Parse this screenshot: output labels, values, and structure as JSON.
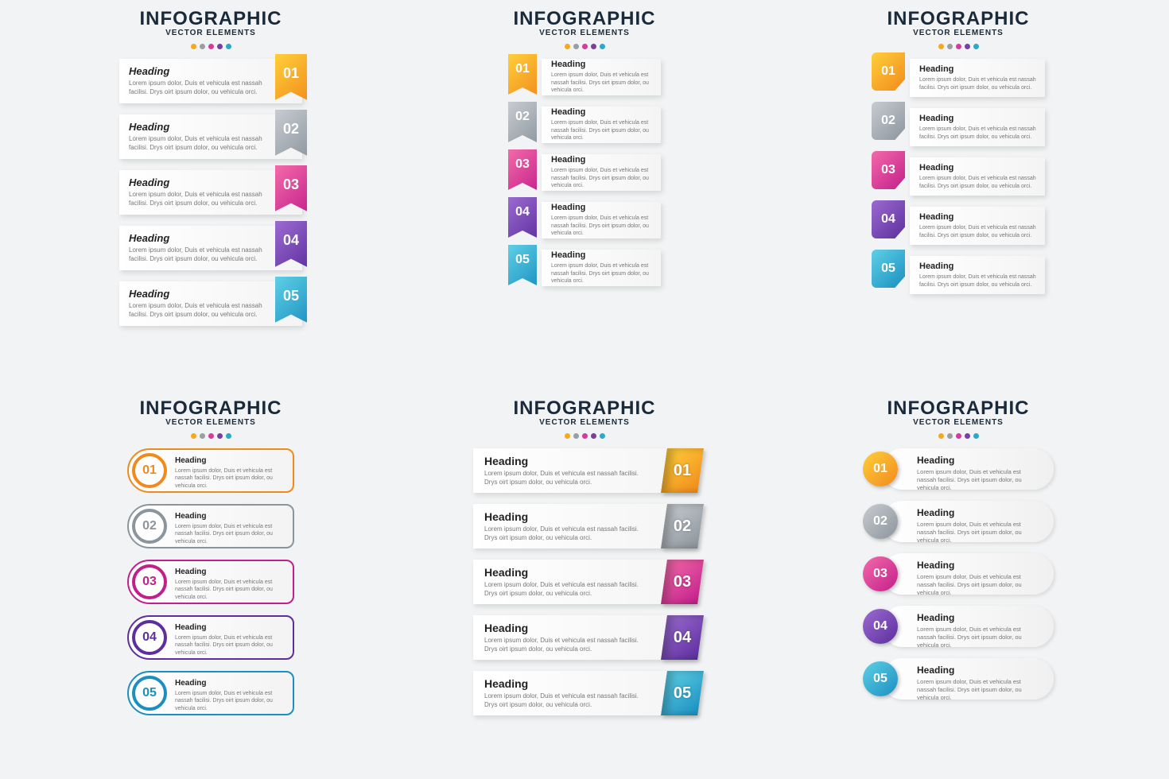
{
  "header": {
    "title": "INFOGRAPHIC",
    "subtitle": "VECTOR ELEMENTS"
  },
  "dot_colors": [
    "#f7a81b",
    "#9a9fa6",
    "#d63a9a",
    "#7b3fa0",
    "#2aa9c9"
  ],
  "item": {
    "heading": "Heading",
    "body": "Lorem ipsum dolor, Duis et vehicula est nassah facilisi. Drys oirt ipsum dolor, ou vehicula orci."
  },
  "numbers": [
    "01",
    "02",
    "03",
    "04",
    "05"
  ],
  "palette": {
    "01": {
      "grad_a": "#ffcf3a",
      "grad_b": "#f18a1c",
      "text_on": "#ffffff",
      "alt_text": "#f18a1c"
    },
    "02": {
      "grad_a": "#c7ccd1",
      "grad_b": "#8c949c",
      "text_on": "#ffffff",
      "alt_text": "#8c949c"
    },
    "03": {
      "grad_a": "#f36aa9",
      "grad_b": "#c31f8b",
      "text_on": "#ffffff",
      "alt_text": "#c31f8b"
    },
    "04": {
      "grad_a": "#9b6bd0",
      "grad_b": "#5d2f9e",
      "text_on": "#ffffff",
      "alt_text": "#5d2f9e"
    },
    "05": {
      "grad_a": "#5fd0e6",
      "grad_b": "#1a8fc0",
      "text_on": "#ffffff",
      "alt_text": "#1a8fc0"
    }
  },
  "layout": {
    "panels": 6,
    "items_per_panel": 5,
    "background": "#f2f3f4",
    "card_bg_from": "#ffffff",
    "card_bg_to": "#f4f4f4",
    "title_color": "#1a2a3a",
    "body_color": "#777777"
  }
}
